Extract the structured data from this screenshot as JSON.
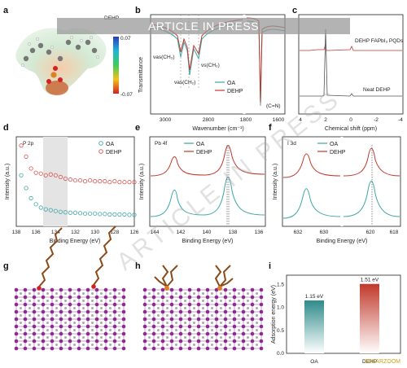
{
  "banner": "ARTICLE IN PRESS",
  "watermark": "ARTICLE IN PRESS",
  "corner_logo": "SOLARZOOM",
  "panels": {
    "a": {
      "letter": "a",
      "label": "DEHP",
      "scale_max": "0.07",
      "scale_min": "-0.07"
    },
    "b": {
      "letter": "b",
      "ylabel": "Transmittance",
      "xlabel": "Wavenumber (cm⁻¹)",
      "xticks": [
        "3000",
        "2800",
        "1800",
        "1600"
      ],
      "legend": [
        "OA",
        "DEHP"
      ],
      "annot": [
        "νas(CH₃)",
        "νs(CH₂)",
        "νas(CH₂)",
        "(C=N)"
      ]
    },
    "c": {
      "letter": "c",
      "xlabel": "Chemical shift (ppm)",
      "xticks": [
        "4",
        "2",
        "0",
        "-2",
        "-4"
      ],
      "label_top": "DEHP FAPbI₃ PQDs",
      "label_bottom": "Neat DEHP"
    },
    "d": {
      "letter": "d",
      "title": "P 2p",
      "ylabel": "Intensity (a.u.)",
      "xlabel": "Binding Energy (eV)",
      "xticks": [
        "138",
        "136",
        "134",
        "132",
        "130",
        "128",
        "126"
      ],
      "legend": [
        "OA",
        "DEHP"
      ]
    },
    "e": {
      "letter": "e",
      "title": "Pb 4f",
      "ylabel": "Intensity (a.u.)",
      "xlabel": "Binding Energy (eV)",
      "xticks": [
        "144",
        "142",
        "140",
        "138",
        "136"
      ],
      "legend": [
        "OA",
        "DEHP"
      ]
    },
    "f": {
      "letter": "f",
      "title": "I 3d",
      "ylabel": "Intensity (a.u.)",
      "xlabel": "Binding Energy (eV)",
      "xticks": [
        "632",
        "630",
        "620",
        "618"
      ],
      "legend": [
        "OA",
        "DEHP"
      ]
    },
    "g": {
      "letter": "g"
    },
    "h": {
      "letter": "h"
    },
    "i": {
      "letter": "i",
      "ylabel": "Adsorption energy (eV)",
      "yticks": [
        "0.0",
        "0.5",
        "1.0",
        "1.5"
      ]
    }
  },
  "chart_data": [
    {
      "type": "bar",
      "panel": "i",
      "categories": [
        "OA",
        "DEHP"
      ],
      "values": [
        1.15,
        1.51
      ],
      "value_labels": [
        "1.15 eV",
        "1.51 eV"
      ],
      "ylabel": "Adsorption energy (eV)",
      "ylim": [
        0,
        1.7
      ],
      "colors": [
        "#2e8b8b",
        "#c0392b"
      ]
    },
    {
      "type": "scatter",
      "panel": "d",
      "title": "P 2p",
      "xlabel": "Binding Energy (eV)",
      "ylabel": "Intensity (a.u.)",
      "xlim": [
        138,
        126
      ],
      "series": [
        {
          "name": "OA",
          "color": "#3fa7a7",
          "x": [
            137.5,
            137,
            136.5,
            136,
            135.5,
            135,
            134.5,
            134,
            133.5,
            133,
            132.5,
            132,
            131.5,
            131,
            130.5,
            130,
            129.5,
            129,
            128.5,
            128,
            127.5,
            127,
            126.5,
            126
          ],
          "y": [
            0.6,
            0.45,
            0.33,
            0.26,
            0.22,
            0.2,
            0.19,
            0.18,
            0.17,
            0.165,
            0.16,
            0.16,
            0.155,
            0.15,
            0.15,
            0.15,
            0.145,
            0.145,
            0.14,
            0.14,
            0.14,
            0.14,
            0.135,
            0.135
          ]
        },
        {
          "name": "DEHP",
          "color": "#d9534f",
          "x": [
            137.5,
            137,
            136.5,
            136,
            135.5,
            135,
            134.5,
            134,
            133.5,
            133,
            132.5,
            132,
            131.5,
            131,
            130.5,
            130,
            129.5,
            129,
            128.5,
            128,
            127.5,
            127,
            126.5,
            126
          ],
          "y": [
            0.95,
            0.82,
            0.68,
            0.63,
            0.62,
            0.6,
            0.61,
            0.6,
            0.58,
            0.56,
            0.55,
            0.54,
            0.54,
            0.53,
            0.54,
            0.53,
            0.53,
            0.53,
            0.52,
            0.53,
            0.52,
            0.52,
            0.52,
            0.52
          ]
        }
      ]
    },
    {
      "type": "line",
      "panel": "e",
      "title": "Pb 4f",
      "xlabel": "Binding Energy (eV)",
      "ylabel": "Intensity (a.u.)",
      "xlim": [
        145,
        135
      ],
      "series": [
        {
          "name": "OA",
          "color": "#3fa7a7",
          "peaks": [
            142.9,
            138.0
          ]
        },
        {
          "name": "DEHP",
          "color": "#c0392b",
          "peaks": [
            143.0,
            138.1
          ]
        }
      ]
    },
    {
      "type": "line",
      "panel": "f",
      "title": "I 3d",
      "xlabel": "Binding Energy (eV)",
      "ylabel": "Intensity (a.u.)",
      "xticks": [
        "632",
        "630",
        "620",
        "618"
      ],
      "series": [
        {
          "name": "OA",
          "color": "#3fa7a7",
          "peaks": [
            630.3,
            619.0
          ]
        },
        {
          "name": "DEHP",
          "color": "#c0392b",
          "peaks": [
            630.4,
            619.1
          ]
        }
      ]
    }
  ]
}
